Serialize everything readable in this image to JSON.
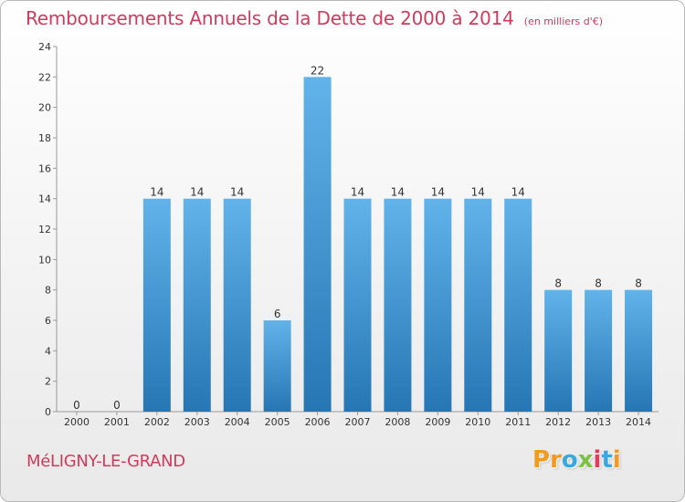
{
  "title": "Remboursements Annuels de la Dette de 2000 à 2014",
  "unit": "(en milliers d'€)",
  "commune": "MéLIGNY-LE-GRAND",
  "brand": {
    "letters": [
      "P",
      "r",
      "o",
      "x",
      "i",
      "t",
      "i"
    ],
    "colors": [
      "#f39a1e",
      "#f39a1e",
      "#3aa7e0",
      "#7cc242",
      "#e23b5b",
      "#3aa7e0",
      "#f39a1e"
    ]
  },
  "colors": {
    "bar_light": "#62b3ea",
    "bar_dark": "#2676b4",
    "title": "#d23a5d"
  },
  "chart_data": {
    "type": "bar",
    "categories": [
      "2000",
      "2001",
      "2002",
      "2003",
      "2004",
      "2005",
      "2006",
      "2007",
      "2008",
      "2009",
      "2010",
      "2011",
      "2012",
      "2013",
      "2014"
    ],
    "values": [
      0,
      0,
      14,
      14,
      14,
      6,
      22,
      14,
      14,
      14,
      14,
      14,
      8,
      8,
      8
    ],
    "data_labels": [
      "0",
      "0",
      "14",
      "14",
      "14",
      "6",
      "22",
      "14",
      "14",
      "14",
      "14",
      "14",
      "8",
      "8",
      "8"
    ],
    "ylim": [
      0,
      24
    ],
    "yticks": [
      0,
      2,
      4,
      6,
      8,
      10,
      12,
      14,
      16,
      18,
      20,
      22,
      24
    ],
    "grid": false
  }
}
